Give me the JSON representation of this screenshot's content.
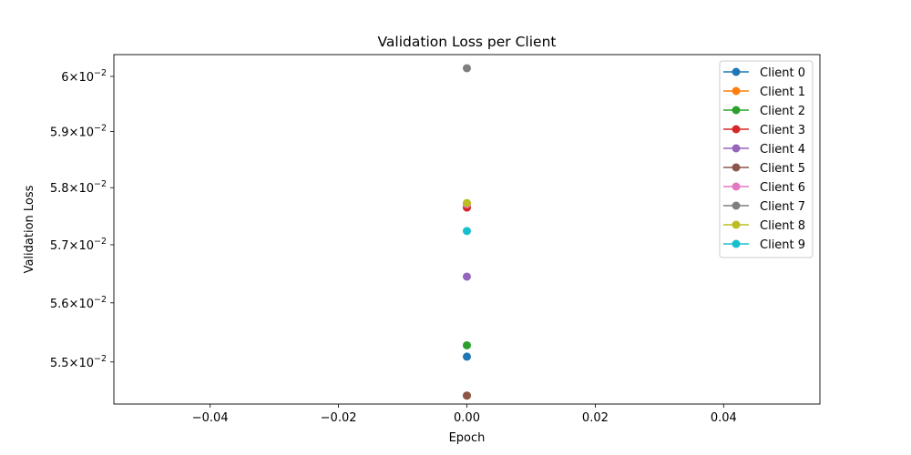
{
  "chart_data": {
    "type": "scatter",
    "title": "Validation Loss per Client",
    "xlabel": "Epoch",
    "ylabel": "Validation Loss",
    "yscale": "log",
    "xlim": [
      -0.055,
      0.055
    ],
    "ylim": [
      0.0543,
      0.0604
    ],
    "x_ticks": [
      {
        "value": -0.04,
        "label": "−0.04"
      },
      {
        "value": -0.02,
        "label": "−0.02"
      },
      {
        "value": 0.0,
        "label": "0.00"
      },
      {
        "value": 0.02,
        "label": "0.02"
      },
      {
        "value": 0.04,
        "label": "0.04"
      }
    ],
    "y_ticks": [
      {
        "value": 0.055,
        "mantissa": "5.5",
        "exp": "−2"
      },
      {
        "value": 0.056,
        "mantissa": "5.6",
        "exp": "−2"
      },
      {
        "value": 0.057,
        "mantissa": "5.7",
        "exp": "−2"
      },
      {
        "value": 0.058,
        "mantissa": "5.8",
        "exp": "−2"
      },
      {
        "value": 0.059,
        "mantissa": "5.9",
        "exp": "−2"
      },
      {
        "value": 0.06,
        "mantissa": "6",
        "exp": "−2"
      }
    ],
    "grid": false,
    "legend_position": "top-right",
    "series": [
      {
        "name": "Client 0",
        "color": "#1f77b4",
        "x": [
          0
        ],
        "y": [
          0.05509
        ]
      },
      {
        "name": "Client 1",
        "color": "#ff7f0e",
        "x": [
          0
        ],
        "y": [
          0.05444
        ]
      },
      {
        "name": "Client 2",
        "color": "#2ca02c",
        "x": [
          0
        ],
        "y": [
          0.05528
        ]
      },
      {
        "name": "Client 3",
        "color": "#d62728",
        "x": [
          0
        ],
        "y": [
          0.05765
        ]
      },
      {
        "name": "Client 4",
        "color": "#9467bd",
        "x": [
          0
        ],
        "y": [
          0.05645
        ]
      },
      {
        "name": "Client 5",
        "color": "#8c564b",
        "x": [
          0
        ],
        "y": [
          0.05444
        ]
      },
      {
        "name": "Client 6",
        "color": "#e377c2",
        "x": [
          0
        ],
        "y": [
          0.05771
        ]
      },
      {
        "name": "Client 7",
        "color": "#7f7f7f",
        "x": [
          0
        ],
        "y": [
          0.06015
        ]
      },
      {
        "name": "Client 8",
        "color": "#bcbd22",
        "x": [
          0
        ],
        "y": [
          0.05773
        ]
      },
      {
        "name": "Client 9",
        "color": "#17becf",
        "x": [
          0
        ],
        "y": [
          0.05724
        ]
      }
    ]
  }
}
